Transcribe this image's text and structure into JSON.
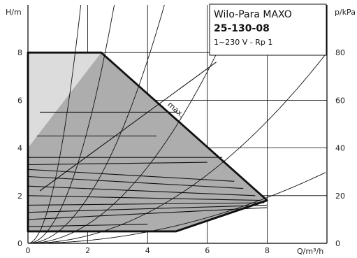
{
  "chart_data": {
    "type": "line",
    "title": {
      "brand": "Wilo-Para MAXO",
      "model": "25-130-08",
      "spec": "1~230 V - Rp 1"
    },
    "xlabel": "Q/m³/h",
    "ylabel_left": "H/m",
    "ylabel_right": "p/kPa",
    "xlim": [
      0,
      10
    ],
    "ylim": [
      0,
      10
    ],
    "ylim_right": [
      0,
      100
    ],
    "xticks": [
      0,
      2,
      4,
      6,
      8
    ],
    "yticks": [
      0,
      2,
      4,
      6,
      8
    ],
    "yticks_right": [
      0,
      20,
      40,
      60,
      80
    ],
    "grid": true,
    "max_label": "max.",
    "pump_envelope": {
      "x": [
        0,
        0,
        2.45,
        8.0,
        4.95,
        0
      ],
      "y": [
        4.0,
        8.0,
        8.0,
        1.8,
        0.5,
        0.5
      ]
    },
    "light_region": {
      "x": [
        0,
        2.45,
        0
      ],
      "y": [
        8.0,
        8.0,
        4.0
      ]
    },
    "min_curve": {
      "x": [
        0,
        4.95,
        8.0
      ],
      "y": [
        0.5,
        0.5,
        1.8
      ]
    },
    "control_curves": [
      {
        "x": [
          0,
          6.5
        ],
        "y": [
          3.6,
          3.6
        ]
      },
      {
        "x": [
          0,
          6.0
        ],
        "y": [
          3.3,
          3.4
        ]
      },
      {
        "x": [
          0,
          6.9
        ],
        "y": [
          3.1,
          2.6
        ]
      },
      {
        "x": [
          0,
          7.2
        ],
        "y": [
          2.8,
          2.3
        ]
      },
      {
        "x": [
          0,
          7.6
        ],
        "y": [
          2.4,
          2.0
        ]
      },
      {
        "x": [
          0,
          7.8
        ],
        "y": [
          2.0,
          1.8
        ]
      },
      {
        "x": [
          0,
          7.9
        ],
        "y": [
          1.6,
          1.7
        ]
      },
      {
        "x": [
          0,
          8.0
        ],
        "y": [
          1.3,
          1.6
        ]
      },
      {
        "x": [
          0,
          8.0
        ],
        "y": [
          1.0,
          1.5
        ]
      },
      {
        "x": [
          0,
          4.0
        ],
        "y": [
          0.7,
          0.8
        ]
      },
      {
        "x": [
          0.4,
          6.3
        ],
        "y": [
          2.2,
          7.6
        ]
      },
      {
        "x": [
          0.4,
          5.0
        ],
        "y": [
          5.5,
          5.5
        ]
      },
      {
        "x": [
          0.3,
          4.3
        ],
        "y": [
          4.5,
          4.5
        ]
      }
    ],
    "system_curves": [
      {
        "k": 3.2
      },
      {
        "k": 1.2
      },
      {
        "k": 0.48
      },
      {
        "k": 0.2
      },
      {
        "k": 0.08
      },
      {
        "k": 0.03
      }
    ]
  },
  "colors": {
    "envelope_fill": "#adadad",
    "light_fill": "#dcdcdc",
    "envelope_stroke": "#111111",
    "curve": "#111111",
    "grid": "#000000"
  }
}
